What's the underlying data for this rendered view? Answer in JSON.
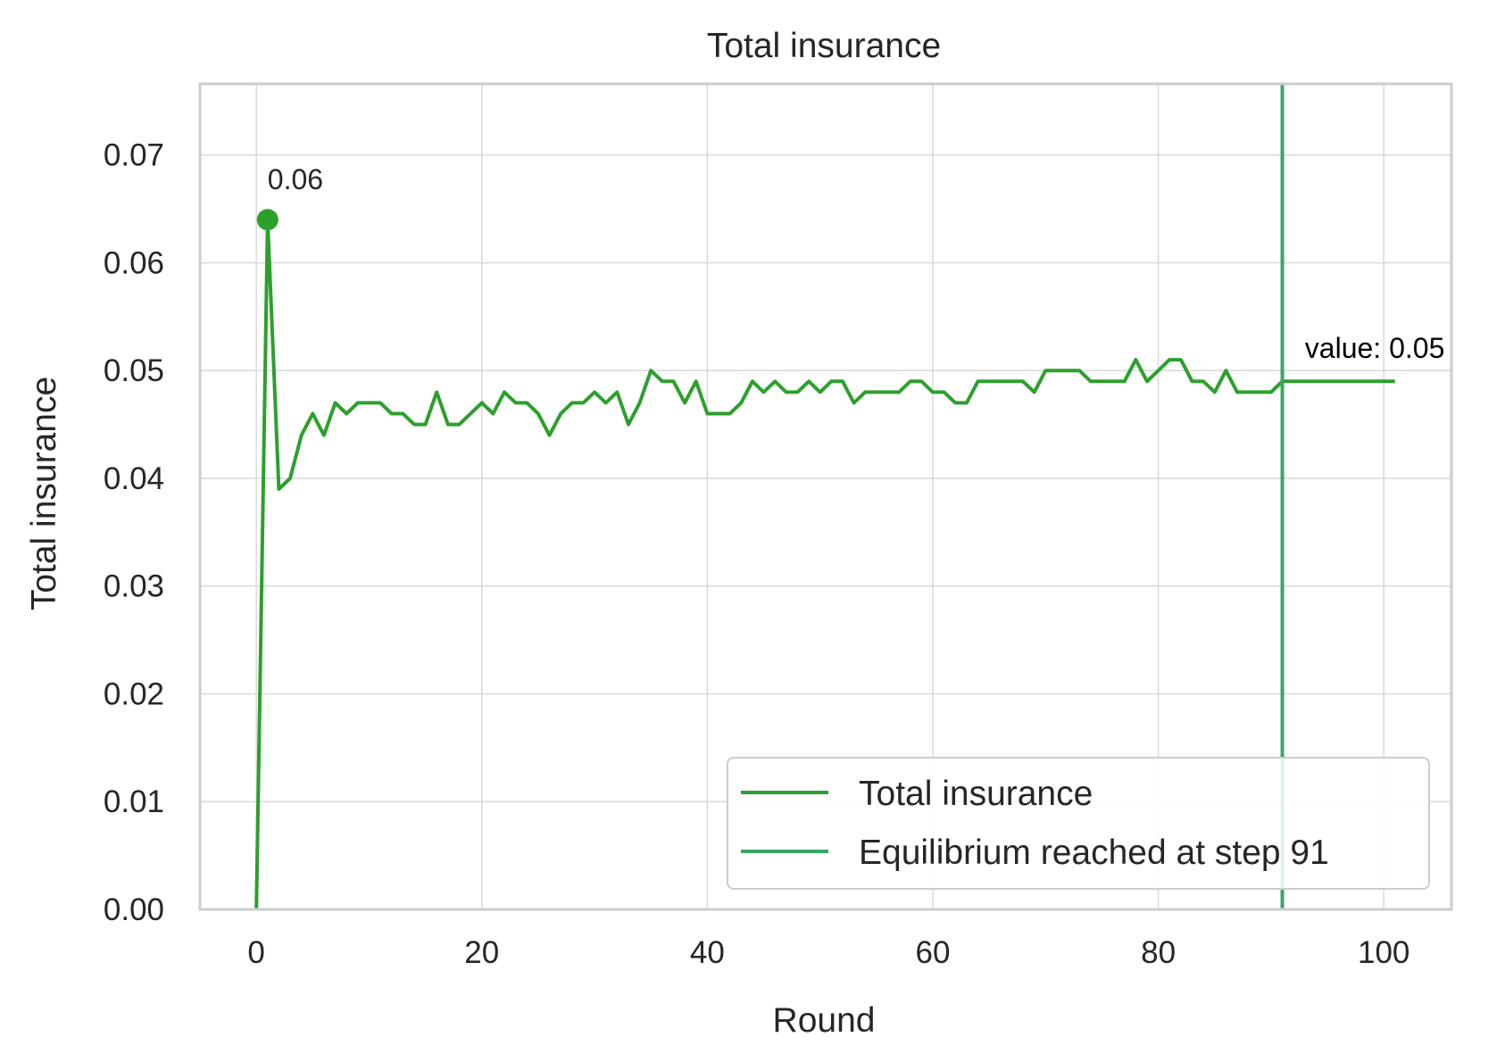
{
  "chart_data": {
    "type": "line",
    "title": "Total insurance",
    "xlabel": "Round",
    "ylabel": "Total insurance",
    "xlim": [
      -5,
      106
    ],
    "ylim": [
      0.0,
      0.0766
    ],
    "xticks": [
      0,
      20,
      40,
      60,
      80,
      100
    ],
    "xtick_labels": [
      "0",
      "20",
      "40",
      "60",
      "80",
      "100"
    ],
    "yticks": [
      0.0,
      0.01,
      0.02,
      0.03,
      0.04,
      0.05,
      0.06,
      0.07
    ],
    "ytick_labels": [
      "0.00",
      "0.01",
      "0.02",
      "0.03",
      "0.04",
      "0.05",
      "0.06",
      "0.07"
    ],
    "grid": true,
    "legend_position": "lower-right",
    "series": [
      {
        "name": "Total insurance",
        "color": "#2ca02c",
        "x": [
          0,
          1,
          2,
          3,
          4,
          5,
          6,
          7,
          8,
          9,
          10,
          11,
          12,
          13,
          14,
          15,
          16,
          17,
          18,
          19,
          20,
          21,
          22,
          23,
          24,
          25,
          26,
          27,
          28,
          29,
          30,
          31,
          32,
          33,
          34,
          35,
          36,
          37,
          38,
          39,
          40,
          41,
          42,
          43,
          44,
          45,
          46,
          47,
          48,
          49,
          50,
          51,
          52,
          53,
          54,
          55,
          56,
          57,
          58,
          59,
          60,
          61,
          62,
          63,
          64,
          65,
          66,
          67,
          68,
          69,
          70,
          71,
          72,
          73,
          74,
          75,
          76,
          77,
          78,
          79,
          80,
          81,
          82,
          83,
          84,
          85,
          86,
          87,
          88,
          89,
          90,
          91,
          92,
          93,
          94,
          95,
          96,
          97,
          98,
          99,
          100,
          101
        ],
        "values": [
          0.0,
          0.064,
          0.039,
          0.04,
          0.044,
          0.046,
          0.044,
          0.047,
          0.046,
          0.047,
          0.047,
          0.047,
          0.046,
          0.046,
          0.045,
          0.045,
          0.048,
          0.045,
          0.045,
          0.046,
          0.047,
          0.046,
          0.048,
          0.047,
          0.047,
          0.046,
          0.044,
          0.046,
          0.047,
          0.047,
          0.048,
          0.047,
          0.048,
          0.045,
          0.047,
          0.05,
          0.049,
          0.049,
          0.047,
          0.049,
          0.046,
          0.046,
          0.046,
          0.047,
          0.049,
          0.048,
          0.049,
          0.048,
          0.048,
          0.049,
          0.048,
          0.049,
          0.049,
          0.047,
          0.048,
          0.048,
          0.048,
          0.048,
          0.049,
          0.049,
          0.048,
          0.048,
          0.047,
          0.047,
          0.049,
          0.049,
          0.049,
          0.049,
          0.049,
          0.048,
          0.05,
          0.05,
          0.05,
          0.05,
          0.049,
          0.049,
          0.049,
          0.049,
          0.051,
          0.049,
          0.05,
          0.051,
          0.051,
          0.049,
          0.049,
          0.048,
          0.05,
          0.048,
          0.048,
          0.048,
          0.048,
          0.049,
          0.049,
          0.049,
          0.049,
          0.049,
          0.049,
          0.049,
          0.049,
          0.049,
          0.049,
          0.049
        ]
      },
      {
        "name": "Equilibrium reached at step 91",
        "color": "#3aa565",
        "type": "vline",
        "x": 91
      }
    ],
    "markers": [
      {
        "x": 1,
        "y": 0.064,
        "label": "0.06",
        "color": "#2ca02c"
      }
    ],
    "annotations": [
      {
        "text": "value: 0.05",
        "x": 93,
        "y": 0.0505
      }
    ]
  }
}
